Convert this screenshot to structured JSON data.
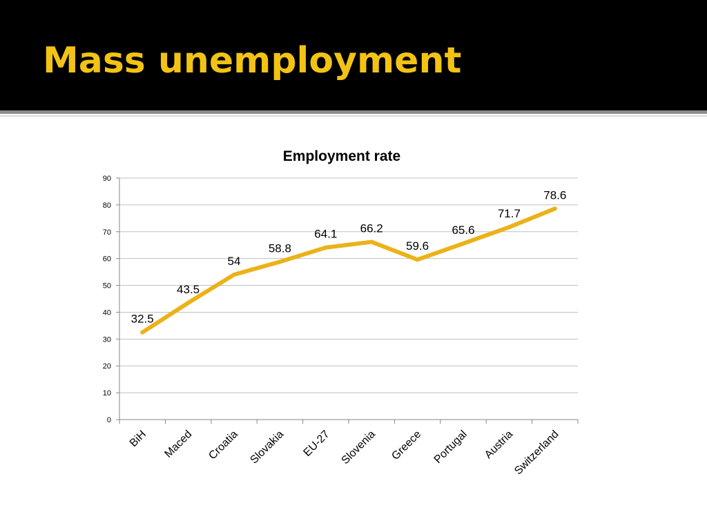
{
  "slide": {
    "title": "Mass unemployment"
  },
  "colors": {
    "title_bar": "#000000",
    "title_text": "#f2c314",
    "series_line": "#ebb219"
  },
  "chart_data": {
    "type": "line",
    "title": "Employment rate",
    "xlabel": "",
    "ylabel": "",
    "ylim": [
      0,
      90
    ],
    "yticks": [
      0,
      10,
      20,
      30,
      40,
      50,
      60,
      70,
      80,
      90
    ],
    "grid": true,
    "legend": "none",
    "categories": [
      "BiH",
      "Maced",
      "Croatia",
      "Slovakia",
      "EU-27",
      "Slovenia",
      "Greece",
      "Portugal",
      "Austria",
      "Switzerland"
    ],
    "series": [
      {
        "values": [
          32.5,
          43.5,
          54,
          58.8,
          64.1,
          66.2,
          59.6,
          65.6,
          71.7,
          78.6
        ],
        "labels": [
          "32.5",
          "43.5",
          "54",
          "58.8",
          "64.1",
          "66.2",
          "59.6",
          "65.6",
          "71.7",
          "78.6"
        ]
      }
    ]
  }
}
